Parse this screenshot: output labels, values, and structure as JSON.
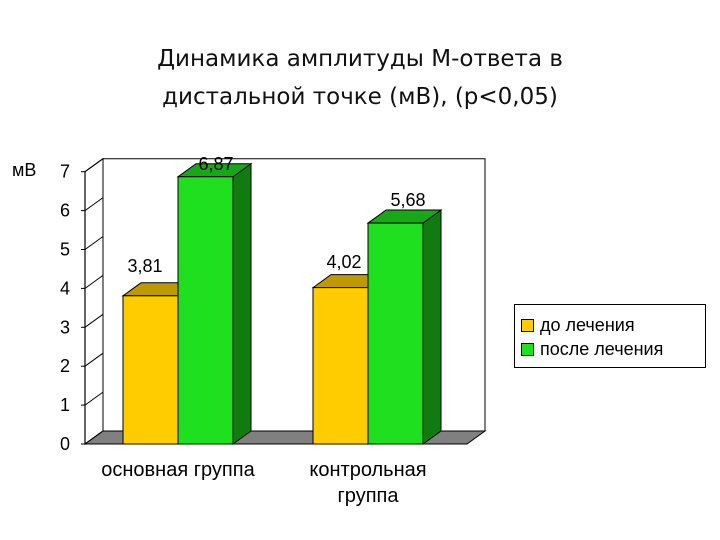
{
  "title_lines": [
    "Динамика амплитуды М-ответа в",
    "дистальной точке (мВ), (p<0,05)"
  ],
  "colors": {
    "series_before": "#ffcc00",
    "series_after": "#1ee01e",
    "axis": "#000000",
    "floor": "#808080"
  },
  "chart_data": {
    "type": "bar",
    "title": "Динамика амплитуды М-ответа в дистальной точке (мВ), (p<0,05)",
    "ylabel": "мВ",
    "xlabel": "",
    "categories": [
      [
        "основная группа"
      ],
      [
        "контрольная",
        "группа"
      ]
    ],
    "series": [
      {
        "name": "до лечения",
        "values": [
          3.81,
          4.02
        ],
        "value_labels": [
          "3,81",
          "4,02"
        ],
        "color": "#ffcc00"
      },
      {
        "name": "после лечения",
        "values": [
          6.87,
          5.68
        ],
        "value_labels": [
          "6,87",
          "5,68"
        ],
        "color": "#1ee01e"
      }
    ],
    "ylim": [
      0,
      7
    ],
    "yticks": [
      0,
      1,
      2,
      3,
      4,
      5,
      6,
      7
    ],
    "grid": false,
    "legend_position": "right",
    "style": "3d"
  }
}
